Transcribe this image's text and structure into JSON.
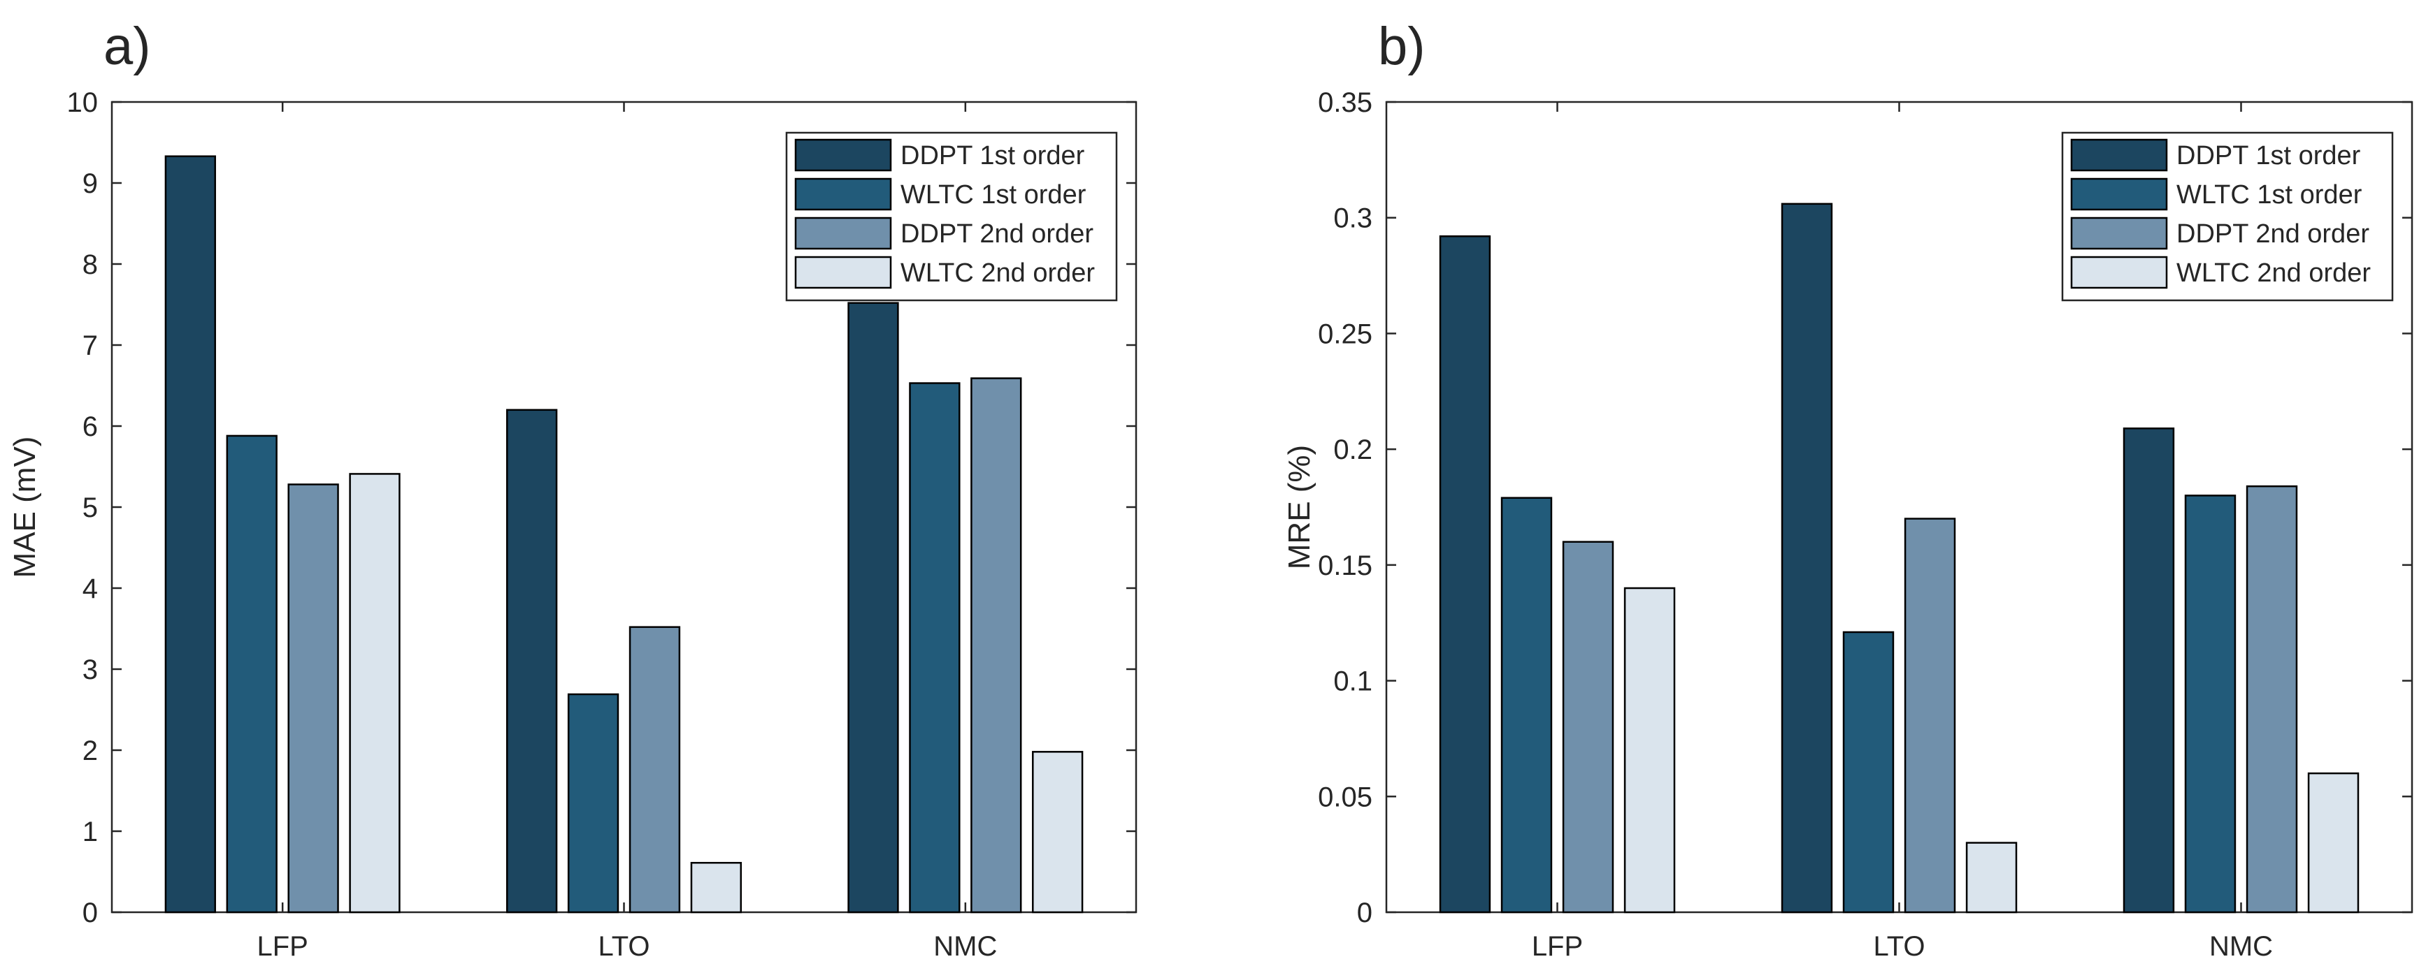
{
  "chart_data": [
    {
      "type": "bar",
      "panel_label": "a)",
      "title": "",
      "xlabel": "",
      "ylabel": "MAE (mV)",
      "ylim": [
        0,
        10
      ],
      "yticks": [
        0,
        1,
        2,
        3,
        4,
        5,
        6,
        7,
        8,
        9,
        10
      ],
      "ytick_labels": [
        "0",
        "1",
        "2",
        "3",
        "4",
        "5",
        "6",
        "7",
        "8",
        "9",
        "10"
      ],
      "categories": [
        "LFP",
        "LTO",
        "NMC"
      ],
      "legend_position": "top-right",
      "series": [
        {
          "name": "DDPT 1st order",
          "color": "#1c4660",
          "values": [
            9.33,
            6.2,
            7.52
          ]
        },
        {
          "name": "WLTC 1st order",
          "color": "#225b7a",
          "values": [
            5.88,
            2.69,
            6.53
          ]
        },
        {
          "name": "DDPT 2nd order",
          "color": "#7090ab",
          "values": [
            5.28,
            3.52,
            6.59
          ]
        },
        {
          "name": "WLTC 2nd order",
          "color": "#dae4ed",
          "values": [
            5.41,
            0.61,
            1.98
          ]
        }
      ]
    },
    {
      "type": "bar",
      "panel_label": "b)",
      "title": "",
      "xlabel": "",
      "ylabel": "MRE (%)",
      "ylim": [
        0,
        0.35
      ],
      "yticks": [
        0,
        0.05,
        0.1,
        0.15,
        0.2,
        0.25,
        0.3,
        0.35
      ],
      "ytick_labels": [
        "0",
        "0.05",
        "0.1",
        "0.15",
        "0.2",
        "0.25",
        "0.3",
        "0.35"
      ],
      "categories": [
        "LFP",
        "LTO",
        "NMC"
      ],
      "legend_position": "top-right",
      "series": [
        {
          "name": "DDPT 1st order",
          "color": "#1c4660",
          "values": [
            0.292,
            0.306,
            0.209
          ]
        },
        {
          "name": "WLTC 1st order",
          "color": "#225b7a",
          "values": [
            0.179,
            0.121,
            0.18
          ]
        },
        {
          "name": "DDPT 2nd order",
          "color": "#7090ab",
          "values": [
            0.16,
            0.17,
            0.184
          ]
        },
        {
          "name": "WLTC 2nd order",
          "color": "#dae4ed",
          "values": [
            0.14,
            0.03,
            0.06
          ]
        }
      ]
    }
  ]
}
